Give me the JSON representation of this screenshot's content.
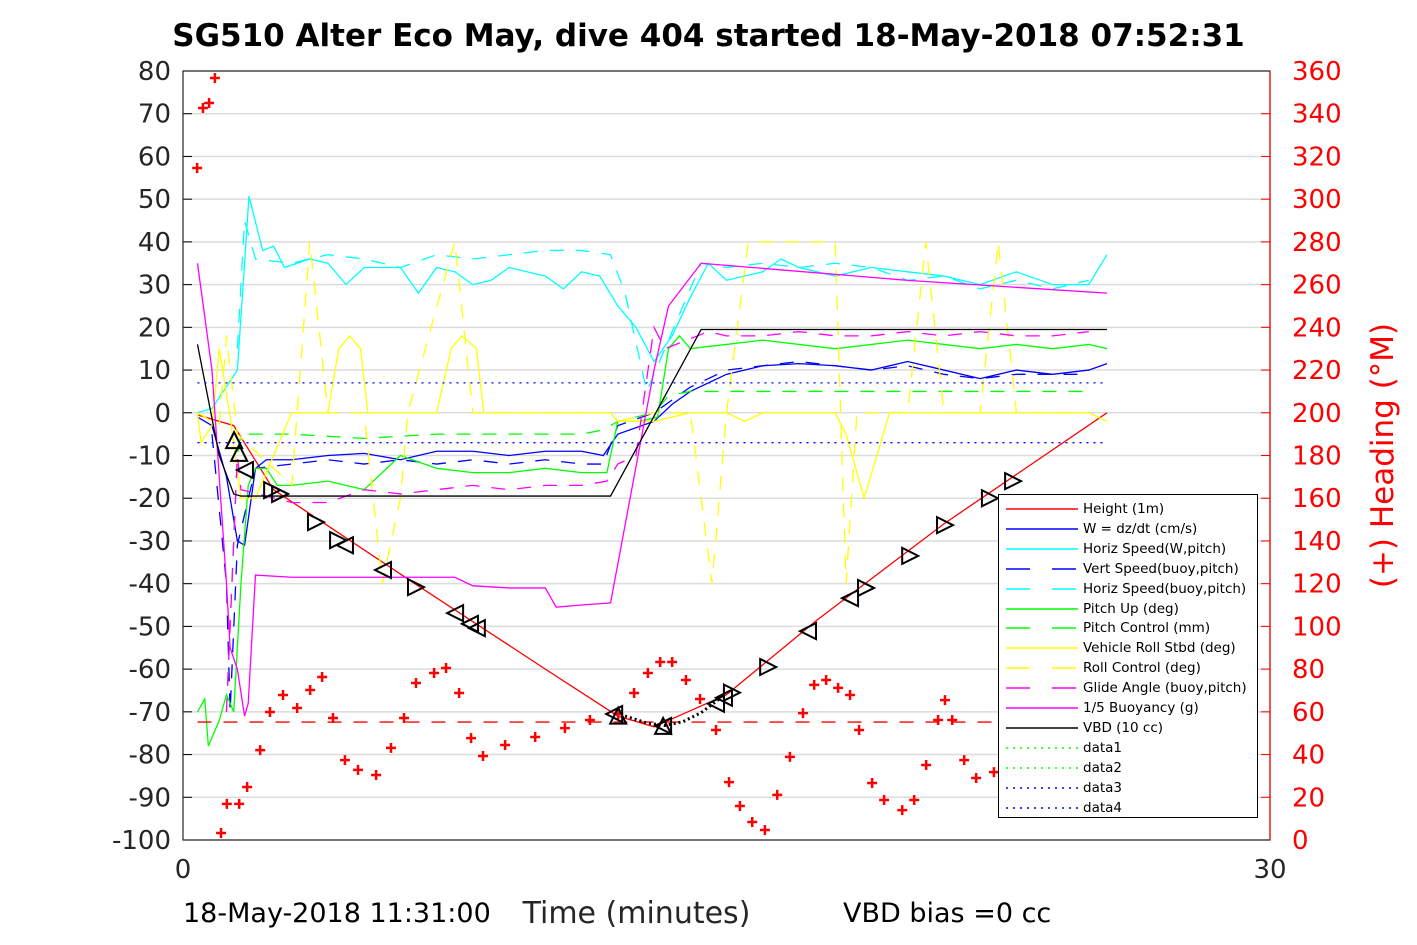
{
  "title": "SG510 Alter Eco May, dive 404 started 18-May-2018 07:52:31",
  "footer": {
    "timestamp": "18-May-2018 11:31:00",
    "vbd_bias": "VBD bias =0 cc"
  },
  "chart_data": {
    "type": "line",
    "title": "SG510 Alter Eco May, dive 404 started 18-May-2018 07:52:31",
    "xlabel": "Time (minutes)",
    "ylabel_right": "(+) Heading (°M)",
    "xlim": [
      0,
      30
    ],
    "ylim": [
      -100,
      80
    ],
    "ylim_right": [
      0,
      360
    ],
    "x_ticks": [
      "0",
      "30"
    ],
    "y_ticks": [
      "80",
      "70",
      "60",
      "50",
      "40",
      "30",
      "20",
      "10",
      "0",
      "-10",
      "-20",
      "-30",
      "-40",
      "-50",
      "-60",
      "-70",
      "-80",
      "-90",
      "-100"
    ],
    "y_ticks_right": [
      "360",
      "340",
      "320",
      "300",
      "280",
      "260",
      "240",
      "220",
      "200",
      "180",
      "160",
      "140",
      "120",
      "100",
      "80",
      "60",
      "40",
      "20",
      "0"
    ],
    "grid": "horizontal",
    "legend_position": "bottom-right",
    "colors": {
      "red": "#ff0000",
      "blue": "#0000ff",
      "cyan": "#00ffff",
      "green": "#00ff00",
      "yellow": "#ffff00",
      "magenta": "#ff00ff",
      "black": "#000000"
    },
    "series": [
      {
        "name": "Height (1m)",
        "color": "#ff0000",
        "style": "solid",
        "x": [
          0.4,
          1.4,
          2.5,
          6.4,
          10,
          12,
          13,
          15,
          17.5,
          21,
          25.5
        ],
        "y": [
          -0.5,
          -3,
          -18,
          -40,
          -60,
          -71,
          -73.5,
          -66,
          -48.5,
          -26,
          0
        ]
      },
      {
        "name": "W = dz/dt (cm/s)",
        "color": "#0000ff",
        "style": "solid",
        "x": [
          0.4,
          0.8,
          1.2,
          1.5,
          1.7,
          2.0,
          2.3,
          3,
          4,
          5,
          6,
          7,
          8,
          9,
          10,
          11,
          11.6,
          12,
          13,
          13.5,
          14,
          15,
          16,
          17,
          18,
          19,
          20,
          21,
          22,
          23,
          24,
          25,
          25.5
        ],
        "y": [
          -1,
          -3,
          -15,
          -30,
          -31,
          -13,
          -11,
          -11,
          -10,
          -9.5,
          -11,
          -9,
          -9,
          -10,
          -9,
          -9,
          -10,
          -5,
          -2,
          2,
          5,
          9,
          11,
          11.5,
          11,
          10,
          12,
          10,
          8,
          10,
          9,
          10,
          11.5
        ]
      },
      {
        "name": "Horiz Speed(W,pitch)",
        "color": "#00ffff",
        "style": "solid",
        "x": [
          0.4,
          0.8,
          1.5,
          1.7,
          1.82,
          2.2,
          2.5,
          2.8,
          3.5,
          4,
          4.5,
          5,
          6,
          6.5,
          7,
          7.5,
          8,
          8.5,
          9,
          10,
          10.5,
          11,
          11.5,
          12,
          12.5,
          13,
          13.5,
          14,
          14.5,
          15,
          16,
          16.5,
          17,
          18,
          19,
          20,
          21,
          22,
          23,
          24,
          25,
          25.5
        ],
        "y": [
          0,
          1,
          10,
          35,
          50.7,
          38,
          39,
          34,
          36,
          35,
          30,
          34,
          34,
          28,
          34,
          33,
          30,
          31,
          34,
          32,
          29,
          33,
          32,
          25,
          20,
          12,
          18,
          27,
          35,
          31,
          33,
          36,
          34,
          32,
          34,
          33,
          32,
          30,
          33,
          30,
          30,
          37
        ]
      },
      {
        "name": "Vert Speed(buoy,pitch)",
        "color": "#0000ff",
        "style": "dash",
        "x": [
          0.8,
          1.2,
          1.3,
          1.5,
          2,
          3,
          4,
          5,
          6,
          7,
          8,
          9,
          10,
          11,
          11.6,
          12,
          13,
          14,
          15,
          16,
          17,
          18,
          19,
          20,
          21,
          22,
          23,
          25
        ],
        "y": [
          -5,
          -40,
          -70,
          -31,
          -13,
          -12,
          -11,
          -12,
          -11,
          -12,
          -11,
          -12,
          -11,
          -12,
          -12,
          -3,
          0,
          6,
          10,
          11,
          12,
          11,
          10,
          11,
          9,
          8,
          9,
          9
        ]
      },
      {
        "name": "Horiz Speed(buoy,pitch)",
        "color": "#00ffff",
        "style": "dash",
        "x": [
          1.5,
          1.7,
          2,
          3,
          4,
          5,
          6,
          7,
          8,
          9,
          10,
          11,
          11.8,
          12.2,
          12.8,
          13.3,
          14.3,
          15,
          16,
          17,
          18,
          19,
          20,
          21,
          22,
          23,
          24,
          25
        ],
        "y": [
          15,
          45,
          36,
          35,
          37,
          36,
          34,
          37,
          36,
          37,
          38,
          38,
          37,
          28,
          5,
          15,
          35,
          34,
          35,
          34,
          35,
          34,
          31,
          32,
          29,
          31,
          29,
          31
        ]
      },
      {
        "name": "Pitch Up (deg)",
        "color": "#00ff00",
        "style": "solid",
        "x": [
          0.4,
          0.6,
          0.7,
          1.0,
          1.2,
          1.4,
          1.6,
          1.8,
          2,
          2.3,
          2.6,
          3,
          4,
          5,
          6,
          7,
          8,
          9,
          10,
          11,
          11.7,
          12,
          12.6,
          13.1,
          13.4,
          13.7,
          14,
          15,
          16,
          17,
          18,
          19,
          20,
          21,
          22,
          23,
          24,
          25,
          25.5
        ],
        "y": [
          -70,
          -67,
          -78,
          -72,
          -66,
          -70,
          -40,
          -17,
          -13,
          -13,
          -17,
          -17,
          -16,
          -18,
          -10,
          -13,
          -14,
          -14,
          -13,
          -14,
          -14,
          -2,
          -2,
          -1,
          15,
          18,
          15,
          16,
          17,
          16,
          15,
          16,
          17,
          16,
          15,
          16,
          15,
          16,
          15
        ]
      },
      {
        "name": "Pitch Control (mm)",
        "color": "#00ff00",
        "style": "dash",
        "x": [
          1.2,
          1.5,
          1.6,
          3,
          5,
          7,
          9,
          11,
          11.6,
          12,
          13,
          13.4,
          14,
          16,
          20,
          25
        ],
        "y": [
          -70,
          -10,
          -5,
          -5,
          -6,
          -5,
          -5,
          -5,
          -4,
          -2,
          0,
          4,
          5,
          5,
          5,
          5
        ]
      },
      {
        "name": "Vehicle Roll Stbd (deg)",
        "color": "#ffff00",
        "style": "solid",
        "x": [
          0.4,
          0.5,
          0.8,
          1.0,
          1.3,
          1.6,
          2,
          2.5,
          3,
          4,
          4.3,
          4.6,
          4.9,
          5.1,
          6,
          7,
          7.4,
          7.7,
          8.1,
          8.3,
          10,
          11,
          11.8,
          12,
          13,
          14,
          15,
          15.5,
          16,
          17,
          18,
          18.3,
          18.8,
          19.5,
          20,
          21,
          22,
          23,
          24,
          25,
          25.5
        ],
        "y": [
          0,
          -7,
          -3,
          15,
          -1,
          -20,
          -20,
          -10,
          0,
          0,
          15,
          18,
          15,
          0,
          0,
          0,
          15,
          18,
          15,
          0,
          0,
          0,
          0,
          -2,
          -2,
          0,
          0,
          -2,
          0,
          0,
          0,
          -5,
          -20,
          0,
          0,
          0,
          0,
          0,
          0,
          0,
          -2
        ]
      },
      {
        "name": "Roll Control (deg)",
        "color": "#ffff00",
        "style": "dash",
        "x": [
          0.4,
          1,
          1.2,
          1.5,
          3,
          3.5,
          4,
          5,
          5.5,
          6,
          6.2,
          7.5,
          8,
          11,
          11.8,
          12,
          13,
          14,
          14.6,
          15,
          15.6,
          16,
          17,
          18,
          18.3,
          18.6,
          20,
          20.5,
          21,
          22,
          22.5,
          23,
          25
        ],
        "y": [
          0,
          -3,
          18,
          -5,
          -17,
          40,
          0,
          0,
          -40,
          -20,
          0,
          40,
          0,
          0,
          0,
          -2,
          0,
          0,
          -40,
          0,
          40,
          40,
          40,
          40,
          -40,
          0,
          0,
          40,
          0,
          0,
          40,
          0,
          0
        ]
      },
      {
        "name": "Glide Angle (buoy,pitch)",
        "color": "#ff00ff",
        "style": "dash",
        "x": [
          1.2,
          1.5,
          1.6,
          3,
          4,
          5,
          6,
          7,
          8,
          9,
          10,
          11,
          11.7,
          12,
          12.5,
          13.0,
          13.3,
          14.5,
          15,
          16,
          17,
          18,
          19,
          20,
          21,
          22,
          23,
          24,
          25
        ],
        "y": [
          -70,
          -10,
          -18,
          -21,
          -21,
          -18,
          -19,
          -18,
          -17,
          -18,
          -17,
          -17,
          -16,
          -12,
          -10,
          20,
          15,
          19,
          18,
          18,
          19,
          18,
          18,
          19,
          18,
          19,
          18,
          18,
          19
        ]
      },
      {
        "name": "1/5 Buoyancy (g)",
        "color": "#ff00ff",
        "style": "solid",
        "x": [
          0.4,
          0.8,
          1.2,
          1.3,
          1.5,
          1.7,
          1.8,
          2,
          3,
          5,
          7.5,
          8,
          9,
          10,
          10.3,
          11,
          11.8,
          13,
          13.4,
          14.3,
          15,
          20,
          25.5
        ],
        "y": [
          35,
          10,
          -40,
          -55,
          -60,
          -71,
          -68,
          -38,
          -38.5,
          -38.5,
          -38.5,
          -40.5,
          -41,
          -41,
          -45.5,
          -45,
          -44.5,
          10,
          25,
          35,
          34.5,
          31,
          28
        ]
      },
      {
        "name": "VBD (10 cc)",
        "color": "#000000",
        "style": "solid",
        "x": [
          0.4,
          1.0,
          1.4,
          1.6,
          3,
          11.8,
          14.3,
          25.5
        ],
        "y": [
          16,
          -10,
          -19,
          -19.5,
          -19.5,
          -19.5,
          19.5,
          19.5
        ]
      },
      {
        "name": "data1",
        "color": "#00ff00",
        "style": "dot",
        "x": [],
        "y": []
      },
      {
        "name": "data2",
        "color": "#00ff00",
        "style": "dot",
        "x": [],
        "y": []
      },
      {
        "name": "data3",
        "color": "#0000ff",
        "style": "dot",
        "x": [
          0.4,
          25.5
        ],
        "y": [
          7,
          7
        ]
      },
      {
        "name": "data4",
        "color": "#0000ff",
        "style": "dot",
        "x": [
          0.4,
          25.5
        ],
        "y": [
          -7,
          -7
        ]
      }
    ],
    "heading": {
      "axis": "right",
      "color": "#ff0000",
      "marker": "+",
      "x": [
        0.39,
        0.55,
        0.72,
        0.88,
        1.05,
        1.21,
        1.55,
        1.77,
        2.13,
        2.4,
        2.76,
        3.15,
        3.51,
        3.84,
        4.14,
        4.47,
        4.83,
        5.33,
        5.74,
        6.1,
        6.43,
        6.93,
        7.26,
        7.62,
        7.95,
        8.28,
        8.89,
        9.72,
        10.54,
        11.23,
        12.01,
        12.45,
        12.83,
        13.17,
        13.5,
        13.88,
        14.27,
        14.71,
        15.07,
        15.37,
        15.71,
        16.06,
        16.4,
        16.75,
        17.11,
        17.42,
        17.75,
        18.08,
        18.41,
        18.66,
        19.02,
        19.35,
        19.85,
        20.18,
        20.51,
        20.84,
        21.03,
        21.23,
        21.56,
        21.89,
        22.38
      ],
      "y": [
        314.6,
        342.7,
        345.0,
        356.7,
        3.3,
        16.9,
        16.9,
        24.8,
        42.1,
        59.9,
        67.9,
        61.8,
        70.2,
        76.3,
        57.1,
        37.4,
        32.8,
        30.4,
        43.1,
        57.1,
        73.5,
        78.2,
        80.5,
        68.8,
        47.7,
        39.3,
        44.5,
        48.2,
        52.4,
        56.2,
        59.0,
        68.8,
        78.2,
        83.3,
        83.3,
        74.9,
        66.0,
        51.5,
        27.1,
        15.9,
        8.4,
        4.7,
        21.1,
        38.9,
        59.4,
        72.6,
        74.9,
        71.2,
        67.9,
        51.5,
        26.7,
        18.7,
        14.0,
        18.7,
        35.1,
        56.2,
        65.5,
        56.2,
        37.4,
        29.0,
        31.8
      ]
    },
    "heading_target": {
      "axis": "right",
      "value": 55.2,
      "x": [
        0.4,
        25.5
      ],
      "color": "#ff0000",
      "style": "dash"
    },
    "fit_curve": {
      "color": "#000000",
      "style": "dot",
      "x": [
        12.2,
        12.8,
        13.3,
        13.8,
        14.3,
        14.8
      ],
      "y": [
        -71,
        -72.6,
        -73.2,
        -72.3,
        -70.2,
        -67
      ]
    },
    "markers": {
      "color": "#000000",
      "points": [
        {
          "x": 1.41,
          "y": -6.4,
          "dir": "up"
        },
        {
          "x": 1.55,
          "y": -9.4,
          "dir": "up"
        },
        {
          "x": 1.71,
          "y": -13.4,
          "dir": "left"
        },
        {
          "x": 2.46,
          "y": -18.1,
          "dir": "right"
        },
        {
          "x": 2.68,
          "y": -19.0,
          "dir": "right"
        },
        {
          "x": 3.67,
          "y": -25.6,
          "dir": "right"
        },
        {
          "x": 4.28,
          "y": -29.8,
          "dir": "right"
        },
        {
          "x": 4.47,
          "y": -31.0,
          "dir": "left"
        },
        {
          "x": 5.52,
          "y": -36.8,
          "dir": "left"
        },
        {
          "x": 6.43,
          "y": -40.8,
          "dir": "right"
        },
        {
          "x": 7.51,
          "y": -46.9,
          "dir": "left"
        },
        {
          "x": 7.92,
          "y": -49.4,
          "dir": "left"
        },
        {
          "x": 8.11,
          "y": -50.4,
          "dir": "left"
        },
        {
          "x": 11.9,
          "y": -70.5,
          "dir": "left"
        },
        {
          "x": 12.01,
          "y": -70.9,
          "dir": "up"
        },
        {
          "x": 13.25,
          "y": -73.3,
          "dir": "up"
        },
        {
          "x": 13.25,
          "y": -73.3,
          "dir": "left"
        },
        {
          "x": 14.71,
          "y": -68.1,
          "dir": "left"
        },
        {
          "x": 14.93,
          "y": -66.7,
          "dir": "left"
        },
        {
          "x": 15.15,
          "y": -65.5,
          "dir": "right"
        },
        {
          "x": 16.15,
          "y": -59.5,
          "dir": "right"
        },
        {
          "x": 17.25,
          "y": -51.1,
          "dir": "left"
        },
        {
          "x": 18.41,
          "y": -43.4,
          "dir": "left"
        },
        {
          "x": 18.85,
          "y": -41.0,
          "dir": "right"
        },
        {
          "x": 20.07,
          "y": -33.5,
          "dir": "right"
        },
        {
          "x": 21.03,
          "y": -26.3,
          "dir": "right"
        },
        {
          "x": 22.27,
          "y": -20.0,
          "dir": "right"
        },
        {
          "x": 22.91,
          "y": -16.0,
          "dir": "right"
        }
      ]
    }
  }
}
